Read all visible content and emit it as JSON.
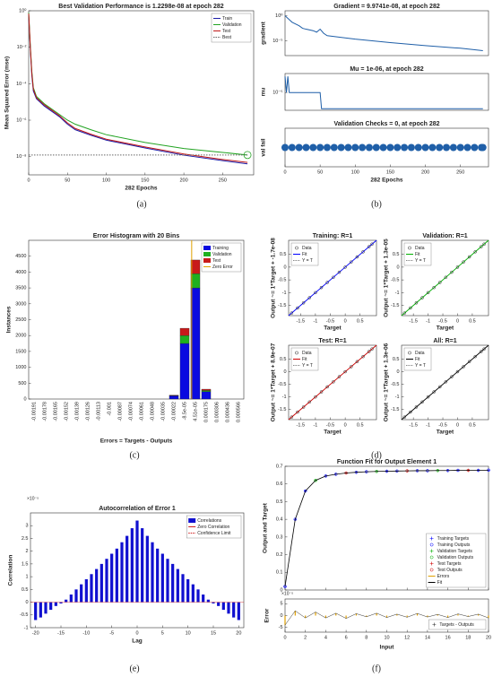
{
  "captions": [
    "(a)",
    "(b)",
    "(c)",
    "(d)",
    "(e)",
    "(f)"
  ],
  "chart_data": [
    {
      "type": "line",
      "title": "Best Validation Performance is 1.2298e-08 at epoch 282",
      "x_label": "282 Epochs",
      "y_label": "Mean Squared Error  (mse)",
      "log_y": true,
      "xlim": [
        0,
        290
      ],
      "ylim": [
        1e-09,
        1
      ],
      "xticks": [
        0,
        50,
        100,
        150,
        200,
        250
      ],
      "yticks": [
        {
          "value": 1,
          "label": "10⁰"
        },
        {
          "value": 0.01,
          "label": "10⁻²"
        },
        {
          "value": 0.0001,
          "label": "10⁻⁴"
        },
        {
          "value": 1e-06,
          "label": "10⁻⁶"
        },
        {
          "value": 1e-08,
          "label": "10⁻⁸"
        }
      ],
      "legend": "upper right",
      "x": [
        0,
        2,
        4,
        6,
        10,
        20,
        30,
        40,
        50,
        60,
        80,
        100,
        150,
        200,
        250,
        282
      ],
      "series": [
        {
          "name": "Train",
          "color": "#1a1aa6",
          "values": [
            0.6,
            0.01,
            0.0003,
            4e-05,
            1.5e-05,
            6e-06,
            3e-06,
            1.5e-06,
            6e-07,
            3e-07,
            1.5e-07,
            8e-08,
            3e-08,
            1.2e-08,
            6e-09,
            4e-09
          ]
        },
        {
          "name": "Validation",
          "color": "#22a322",
          "values": [
            0.8,
            0.015,
            0.0005,
            6e-05,
            2e-05,
            8e-06,
            4e-06,
            2e-06,
            1e-06,
            6e-07,
            3e-07,
            1.6e-07,
            6e-08,
            2.8e-08,
            1.7e-08,
            1.2298e-08
          ]
        },
        {
          "name": "Test",
          "color": "#c01818",
          "values": [
            0.7,
            0.012,
            0.0004,
            5e-05,
            1.7e-05,
            7e-06,
            3.5e-06,
            1.7e-06,
            7e-07,
            3.5e-07,
            1.7e-07,
            9e-08,
            3.4e-08,
            1.4e-08,
            7e-09,
            4.8e-09
          ]
        },
        {
          "name": "Best",
          "color": "#666666",
          "style": "dotted",
          "values": [
            1.2298e-08,
            1.2298e-08,
            1.2298e-08,
            1.2298e-08,
            1.2298e-08,
            1.2298e-08,
            1.2298e-08,
            1.2298e-08,
            1.2298e-08,
            1.2298e-08,
            1.2298e-08,
            1.2298e-08,
            1.2298e-08,
            1.2298e-08,
            1.2298e-08,
            1.2298e-08
          ]
        }
      ]
    },
    {
      "type": "line",
      "title": "Gradient = 9.9741e-08, at epoch 282",
      "y_label": "gradient",
      "log_y": true,
      "color": "#1f5fa8",
      "xlim": [
        0,
        290
      ],
      "ylim": [
        1e-08,
        10
      ],
      "yticks": [
        {
          "value": 1,
          "label": "10⁰"
        },
        {
          "value": 1e-05,
          "label": "10⁻⁵"
        }
      ],
      "x": [
        0,
        10,
        20,
        25,
        30,
        40,
        45,
        50,
        55,
        60,
        100,
        150,
        200,
        250,
        282
      ],
      "values": [
        1,
        0.05,
        0.01,
        0.003,
        0.002,
        0.001,
        0.0005,
        0.002,
        0.0003,
        0.0001,
        2e-05,
        4e-06,
        1e-06,
        3e-07,
        9.9741e-08
      ]
    },
    {
      "type": "line",
      "title": "Mu = 1e-06, at epoch 282",
      "y_label": "mu",
      "log_y": true,
      "color": "#1f5fa8",
      "xlim": [
        0,
        290
      ],
      "ylim": [
        8e-07,
        0.00015
      ],
      "yticks": [
        {
          "value": 1e-05,
          "label": "10⁻⁵"
        }
      ],
      "x": [
        0,
        2,
        4,
        6,
        50,
        52,
        282
      ],
      "values": [
        0.0001,
        1e-05,
        0.0001,
        1e-05,
        1e-05,
        1e-06,
        1e-06
      ]
    },
    {
      "type": "scatter",
      "title": "Validation Checks = 0, at epoch 282",
      "y_label": "val fail",
      "x_label": "282 Epochs",
      "color": "#1f5fa8",
      "xlim": [
        0,
        290
      ],
      "ylim": [
        -1,
        1
      ],
      "xticks": [
        0,
        50,
        100,
        150,
        200,
        250
      ],
      "x": [
        0,
        10,
        20,
        30,
        40,
        50,
        60,
        70,
        80,
        90,
        100,
        110,
        120,
        130,
        140,
        150,
        160,
        170,
        180,
        190,
        200,
        210,
        220,
        230,
        240,
        250,
        260,
        270,
        280,
        282
      ],
      "values": [
        0,
        0,
        0,
        0,
        0,
        0,
        0,
        0,
        0,
        0,
        0,
        0,
        0,
        0,
        0,
        0,
        0,
        0,
        0,
        0,
        0,
        0,
        0,
        0,
        0,
        0,
        0,
        0,
        0,
        0
      ]
    },
    {
      "type": "bar",
      "stacked": true,
      "title": "Error Histogram with 20 Bins",
      "x_label": "Errors = Targets - Outputs",
      "y_label": "Instances",
      "ylim": [
        0,
        5000
      ],
      "yticks": [
        0,
        500,
        1000,
        1500,
        2000,
        2500,
        3000,
        3500,
        4000,
        4500
      ],
      "legend": "upper right",
      "categories": [
        "-0.00191",
        "-0.00178",
        "-0.00165",
        "-0.00152",
        "-0.00139",
        "-0.00126",
        "-0.00113",
        "-0.001",
        "-0.00087",
        "-0.00074",
        "-0.00061",
        "-0.00048",
        "-0.00035",
        "-0.00022",
        "-8.5e-05",
        "4.51e-05",
        "0.000175",
        "0.000306",
        "0.000436",
        "0.000566"
      ],
      "series": [
        {
          "name": "Training",
          "color": "#0a0ae0",
          "values": [
            0,
            0,
            0,
            0,
            0,
            0,
            0,
            0,
            0,
            0,
            0,
            0,
            0,
            100,
            1750,
            3500,
            230,
            0,
            0,
            0
          ]
        },
        {
          "name": "Validation",
          "color": "#1fb01f",
          "values": [
            0,
            0,
            0,
            0,
            0,
            0,
            0,
            0,
            0,
            0,
            0,
            0,
            0,
            10,
            250,
            450,
            40,
            0,
            0,
            0
          ]
        },
        {
          "name": "Test",
          "color": "#c81a1a",
          "values": [
            0,
            0,
            0,
            0,
            0,
            0,
            0,
            0,
            0,
            0,
            0,
            0,
            0,
            10,
            230,
            430,
            40,
            0,
            0,
            0
          ]
        }
      ],
      "zero_error": {
        "name": "Zero Error",
        "color": "#e0a000",
        "value": 0
      }
    },
    {
      "type": "scatter",
      "x_label": "Target",
      "xlim": [
        -1.9,
        1.05
      ],
      "ylim": [
        -1.9,
        1.05
      ],
      "xticks": [
        -1.5,
        -1,
        -0.5,
        0,
        0.5
      ],
      "yticks": [
        -1.5,
        -1,
        -0.5,
        0,
        0.5
      ],
      "legend": "upper left",
      "legend_entries": [
        "Data",
        "Fit",
        "Y = T"
      ],
      "x": [
        -1.8,
        -1.6,
        -1.4,
        -1.2,
        -1,
        -0.8,
        -0.6,
        -0.4,
        -0.2,
        0,
        0.2,
        0.4,
        0.6,
        0.8,
        0.9
      ],
      "panels": [
        {
          "title": "Training: R=1",
          "y_label": "Output ~= 1*Target + -1.7e-08",
          "color": "#0000ff",
          "values": [
            -1.8,
            -1.6,
            -1.4,
            -1.2,
            -1,
            -0.8,
            -0.6,
            -0.4,
            -0.2,
            0,
            0.2,
            0.4,
            0.6,
            0.8,
            0.9
          ]
        },
        {
          "title": "Validation: R=1",
          "y_label": "Output ~= 1*Target + 1.3e-05",
          "color": "#00b000",
          "values": [
            -1.8,
            -1.6,
            -1.4,
            -1.2,
            -1,
            -0.8,
            -0.6,
            -0.4,
            -0.2,
            0,
            0.2,
            0.4,
            0.6,
            0.8,
            0.9
          ]
        },
        {
          "title": "Test: R=1",
          "y_label": "Output ~= 1*Target + 8.9e-07",
          "color": "#d00000",
          "values": [
            -1.8,
            -1.6,
            -1.4,
            -1.2,
            -1,
            -0.8,
            -0.6,
            -0.4,
            -0.2,
            0,
            0.2,
            0.4,
            0.6,
            0.8,
            0.9
          ]
        },
        {
          "title": "All: R=1",
          "y_label": "Output ~= 1*Target + 1.3e-06",
          "color": "#000000",
          "values": [
            -1.8,
            -1.6,
            -1.4,
            -1.2,
            -1,
            -0.8,
            -0.6,
            -0.4,
            -0.2,
            0,
            0.2,
            0.4,
            0.6,
            0.8,
            0.9
          ]
        }
      ]
    },
    {
      "type": "bar",
      "title": "Autocorrelation of Error 1",
      "x_label": "Lag",
      "y_label": "Correlation",
      "y_multiplier": "×10⁻⁵",
      "xlim": [
        -21,
        21
      ],
      "ylim": [
        -1,
        3.5
      ],
      "xticks": [
        -20,
        -15,
        -10,
        -5,
        0,
        5,
        10,
        15,
        20
      ],
      "yticks": [
        -1,
        -0.5,
        0,
        0.5,
        1,
        1.5,
        2,
        2.5,
        3
      ],
      "legend": "upper right",
      "x": [
        -20,
        -19,
        -18,
        -17,
        -16,
        -15,
        -14,
        -13,
        -12,
        -11,
        -10,
        -9,
        -8,
        -7,
        -6,
        -5,
        -4,
        -3,
        -2,
        -1,
        0,
        1,
        2,
        3,
        4,
        5,
        6,
        7,
        8,
        9,
        10,
        11,
        12,
        13,
        14,
        15,
        16,
        17,
        18,
        19,
        20
      ],
      "series": [
        {
          "name": "Correlations",
          "color": "#1010d0",
          "values": [
            -0.7,
            -0.6,
            -0.45,
            -0.3,
            -0.15,
            -0.05,
            0.1,
            0.3,
            0.5,
            0.7,
            0.9,
            1.1,
            1.3,
            1.5,
            1.7,
            1.9,
            2.1,
            2.35,
            2.6,
            2.9,
            3.2,
            2.9,
            2.6,
            2.35,
            2.1,
            1.9,
            1.7,
            1.5,
            1.3,
            1.1,
            0.9,
            0.7,
            0.5,
            0.3,
            0.1,
            -0.05,
            -0.15,
            -0.3,
            -0.45,
            -0.6,
            -0.7
          ]
        }
      ],
      "reference_lines": [
        {
          "name": "Zero Correlation",
          "color": "#d02020"
        },
        {
          "name": "Confidence Limit",
          "color": "#d02020",
          "style": "dotted"
        }
      ]
    },
    {
      "type": "line",
      "title": "Function Fit for Output Element 1",
      "x_label": "Input",
      "y_label": "Output and Target",
      "xlim": [
        0,
        20
      ],
      "ylim": [
        0,
        0.7
      ],
      "xticks": [
        0,
        2,
        4,
        6,
        8,
        10,
        12,
        14,
        16,
        18,
        20
      ],
      "yticks": [
        0,
        0.1,
        0.2,
        0.3,
        0.4,
        0.5,
        0.6,
        0.7
      ],
      "legend": "lower right",
      "y2_label": "Error",
      "y2_multiplier": "×10⁻⁵",
      "y2lim": [
        -7,
        7
      ],
      "y2ticks": [
        -5,
        0,
        5
      ],
      "error_legend": "Targets - Outputs",
      "series": [
        {
          "name": "Training Targets",
          "color": "#0000ff",
          "marker": "+",
          "x": [
            0,
            1,
            2,
            4,
            5,
            7,
            8,
            10,
            11,
            13,
            14,
            16,
            17,
            19,
            20
          ],
          "values": [
            0.02,
            0.4,
            0.56,
            0.645,
            0.655,
            0.666,
            0.669,
            0.672,
            0.673,
            0.675,
            0.675,
            0.676,
            0.677,
            0.677,
            0.678
          ]
        },
        {
          "name": "Training Outputs",
          "color": "#0000ff",
          "marker": "o",
          "x": [
            0,
            1,
            2,
            4,
            5,
            7,
            8,
            10,
            11,
            13,
            14,
            16,
            17,
            19,
            20
          ],
          "values": [
            0.02,
            0.4,
            0.56,
            0.645,
            0.655,
            0.666,
            0.669,
            0.672,
            0.673,
            0.675,
            0.675,
            0.676,
            0.677,
            0.677,
            0.678
          ]
        },
        {
          "name": "Validation Targets",
          "color": "#00b000",
          "marker": "+",
          "x": [
            3,
            9,
            15
          ],
          "values": [
            0.62,
            0.671,
            0.676
          ]
        },
        {
          "name": "Validation Outputs",
          "color": "#00b000",
          "marker": "o",
          "x": [
            3,
            9,
            15
          ],
          "values": [
            0.62,
            0.671,
            0.676
          ]
        },
        {
          "name": "Test Targets",
          "color": "#d00000",
          "marker": "+",
          "x": [
            6,
            12,
            18
          ],
          "values": [
            0.662,
            0.674,
            0.677
          ]
        },
        {
          "name": "Test Outputs",
          "color": "#d00000",
          "marker": "o",
          "x": [
            6,
            12,
            18
          ],
          "values": [
            0.662,
            0.674,
            0.677
          ]
        },
        {
          "name": "Errors",
          "color": "#e0a000",
          "axis": "y2",
          "x": [
            0,
            1,
            2,
            3,
            4,
            5,
            6,
            7,
            8,
            9,
            10,
            11,
            12,
            13,
            14,
            15,
            16,
            17,
            18,
            19,
            20
          ],
          "values": [
            -4,
            2,
            -1,
            1.5,
            -1,
            1,
            -1.2,
            0.8,
            -0.5,
            1,
            -0.8,
            0.6,
            -0.7,
            0.9,
            -0.6,
            0.5,
            -0.8,
            0.7,
            -0.4,
            0.6,
            -1
          ]
        },
        {
          "name": "Fit",
          "color": "#000000",
          "x": [
            0,
            1,
            2,
            3,
            4,
            5,
            6,
            7,
            8,
            9,
            10,
            11,
            12,
            13,
            14,
            15,
            16,
            17,
            18,
            19,
            20
          ],
          "values": [
            0.02,
            0.4,
            0.56,
            0.62,
            0.645,
            0.655,
            0.662,
            0.666,
            0.669,
            0.671,
            0.672,
            0.673,
            0.674,
            0.675,
            0.675,
            0.676,
            0.676,
            0.677,
            0.677,
            0.677,
            0.678
          ]
        }
      ]
    }
  ]
}
